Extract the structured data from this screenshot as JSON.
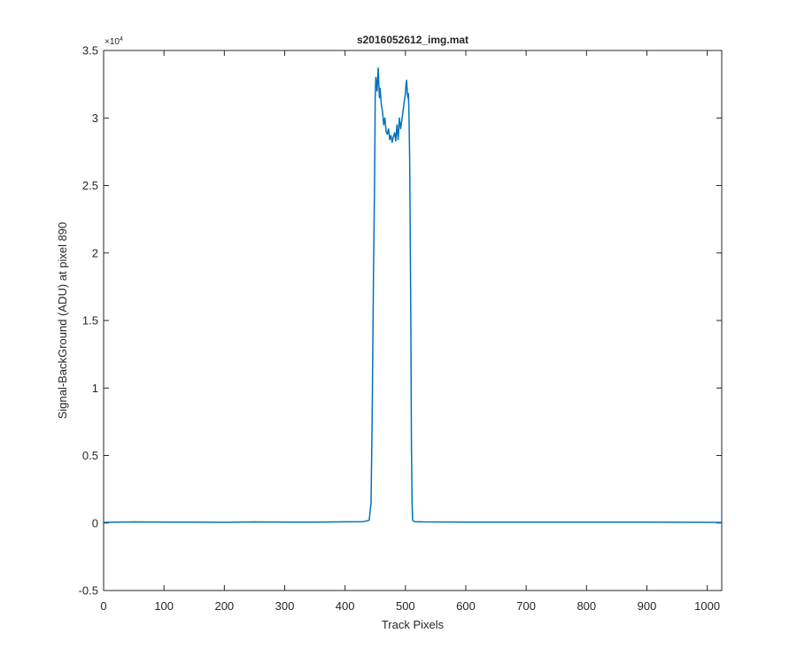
{
  "chart_data": {
    "type": "line",
    "title": "s2016052612_img.mat",
    "xlabel": "Track Pixels",
    "ylabel": "Signal-BackGround (ADU) at pixel 890",
    "y_exponent_label": "×10",
    "y_exponent_power": "4",
    "xlim": [
      0,
      1024
    ],
    "ylim": [
      -5000,
      35000
    ],
    "xticks": [
      0,
      100,
      200,
      300,
      400,
      500,
      600,
      700,
      800,
      900,
      1000
    ],
    "xtick_labels": [
      "0",
      "100",
      "200",
      "300",
      "400",
      "500",
      "600",
      "700",
      "800",
      "900",
      "1000"
    ],
    "yticks": [
      -5000,
      0,
      5000,
      10000,
      15000,
      20000,
      25000,
      30000,
      35000
    ],
    "ytick_labels": [
      "-0.5",
      "0",
      "0.5",
      "1",
      "1.5",
      "2",
      "2.5",
      "3",
      "3.5"
    ],
    "grid": false,
    "line_color": "#0072BD",
    "series": [
      {
        "x": [
          0,
          50,
          100,
          150,
          200,
          250,
          300,
          350,
          400,
          430,
          440,
          443,
          445,
          447,
          449,
          450,
          451,
          452,
          453,
          454,
          455,
          456,
          457,
          458,
          460,
          462,
          464,
          466,
          468,
          470,
          472,
          474,
          476,
          478,
          480,
          482,
          484,
          486,
          488,
          490,
          492,
          494,
          496,
          498,
          500,
          501,
          502,
          503,
          504,
          505,
          506,
          507,
          508,
          509,
          510,
          511,
          512,
          515,
          530,
          600,
          700,
          800,
          900,
          1000,
          1024
        ],
        "y": [
          50,
          80,
          60,
          70,
          50,
          80,
          60,
          70,
          90,
          100,
          200,
          1500,
          8000,
          18000,
          26000,
          31500,
          33000,
          32500,
          32000,
          33000,
          33700,
          32500,
          31500,
          32200,
          31000,
          30500,
          29500,
          30000,
          29000,
          28800,
          29200,
          28400,
          28700,
          28200,
          28600,
          28900,
          28300,
          29500,
          28400,
          30000,
          29200,
          29800,
          30500,
          31200,
          31800,
          32500,
          32800,
          31900,
          31500,
          31800,
          30000,
          27000,
          21000,
          14000,
          6000,
          1500,
          200,
          100,
          80,
          70,
          60,
          70,
          60,
          50,
          40
        ]
      }
    ]
  }
}
